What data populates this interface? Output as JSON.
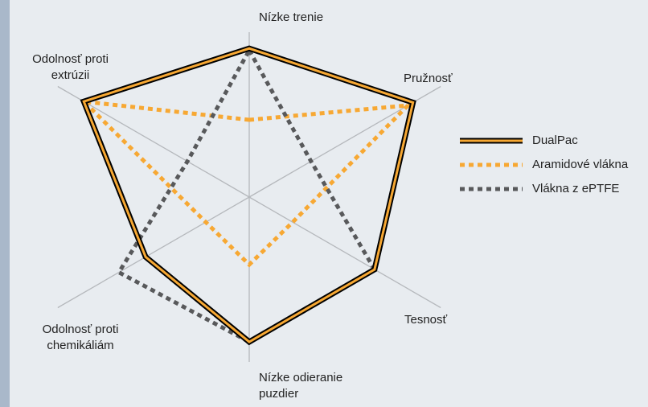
{
  "chart_data": {
    "type": "radar",
    "categories": [
      "Nízke trenie",
      "Pružnosť",
      "Tesnosť",
      "Nízke odieranie puzdier",
      "Odolnosť proti chemikáliám",
      "Odolnosť proti extrúzii"
    ],
    "rlim": [
      0,
      10
    ],
    "series": [
      {
        "name": "DualPac",
        "color": "#f7a833",
        "outline": "#000000",
        "style": "solid",
        "values": [
          7.7,
          9.8,
          7.5,
          7.5,
          6.2,
          9.9
        ]
      },
      {
        "name": "Aramidové vlákna",
        "color": "#f7a833",
        "style": "dotted",
        "values": [
          4.0,
          9.5,
          2.6,
          3.5,
          2.6,
          9.9
        ]
      },
      {
        "name": "Vlákna z ePTFE",
        "color": "#58595b",
        "style": "dotted",
        "values": [
          7.6,
          3.7,
          7.5,
          7.5,
          7.8,
          3.7
        ]
      }
    ],
    "legend": "right"
  }
}
